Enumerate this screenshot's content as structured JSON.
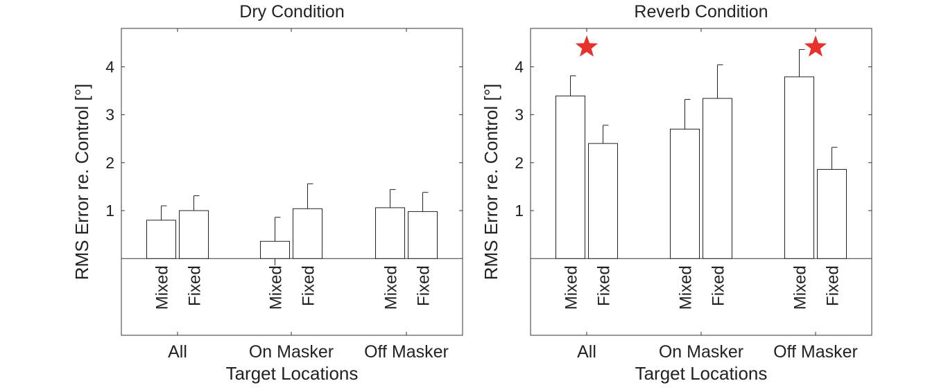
{
  "chart_data": [
    {
      "type": "bar",
      "title": "Dry Condition",
      "xlabel": "Target Locations",
      "ylabel": "RMS Error re. Control [°]",
      "ylim": [
        -1.6,
        4.8
      ],
      "yticks": [
        1,
        2,
        3,
        4
      ],
      "categories": [
        "All",
        "On Masker",
        "Off Masker"
      ],
      "series": [
        {
          "name": "Mixed",
          "values": [
            0.8,
            0.36,
            1.06
          ],
          "errors": [
            0.3,
            0.5,
            0.38
          ]
        },
        {
          "name": "Fixed",
          "values": [
            1.0,
            1.04,
            0.98
          ],
          "errors": [
            0.31,
            0.52,
            0.4
          ]
        }
      ],
      "significance": [],
      "grid": false
    },
    {
      "type": "bar",
      "title": "Reverb Condition",
      "xlabel": "Target Locations",
      "ylabel": "RMS Error re. Control [°]",
      "ylim": [
        -1.6,
        4.8
      ],
      "yticks": [
        1,
        2,
        3,
        4
      ],
      "categories": [
        "All",
        "On Masker",
        "Off Masker"
      ],
      "series": [
        {
          "name": "Mixed",
          "values": [
            3.39,
            2.7,
            3.79
          ],
          "errors": [
            0.42,
            0.62,
            0.57
          ]
        },
        {
          "name": "Fixed",
          "values": [
            2.4,
            3.34,
            1.86
          ],
          "errors": [
            0.38,
            0.7,
            0.46
          ]
        }
      ],
      "significance": [
        {
          "category": "All",
          "marker": "★"
        },
        {
          "category": "Off Masker",
          "marker": "★"
        }
      ],
      "significance_color": "#e8312d",
      "grid": false
    }
  ]
}
